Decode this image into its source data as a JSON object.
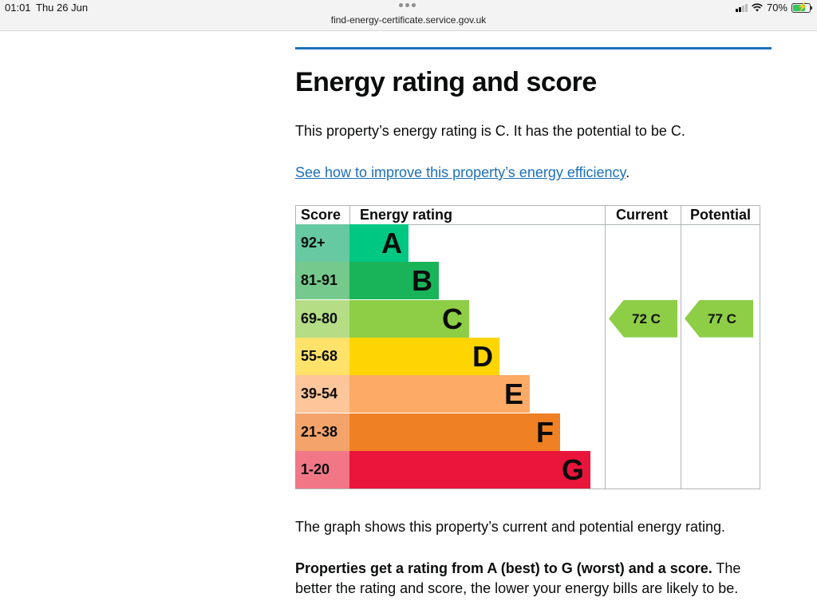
{
  "status_bar": {
    "time": "01:01",
    "date": "Thu 26 Jun",
    "url": "find-energy-certificate.service.gov.uk",
    "battery": "70%",
    "icons": [
      "wifi-icon",
      "signal-icon",
      "battery-charging-icon"
    ]
  },
  "page": {
    "heading": "Energy rating and score",
    "intro": "This property’s energy rating is C. It has the potential to be C.",
    "link_text": "See how to improve this property’s energy efficiency",
    "link_suffix": ".",
    "graph_note": "The graph shows this property’s current and potential energy rating.",
    "scale_note_bold": "Properties get a rating from A (best) to G (worst) and a score.",
    "scale_note_rest": " The better the rating and score, the lower your energy bills are likely to be."
  },
  "chart_data": {
    "type": "table",
    "headers": {
      "score": "Score",
      "rating": "Energy rating",
      "current": "Current",
      "potential": "Potential"
    },
    "bands": [
      {
        "score": "92+",
        "letter": "A",
        "color": "#00c781",
        "score_bg": "#67c9a1"
      },
      {
        "score": "81-91",
        "letter": "B",
        "color": "#19b459",
        "score_bg": "#75c98d"
      },
      {
        "score": "69-80",
        "letter": "C",
        "color": "#8dce46",
        "score_bg": "#b4dd85"
      },
      {
        "score": "55-68",
        "letter": "D",
        "color": "#ffd500",
        "score_bg": "#ffe26a"
      },
      {
        "score": "39-54",
        "letter": "E",
        "color": "#fcaa65",
        "score_bg": "#fdc59a"
      },
      {
        "score": "21-38",
        "letter": "F",
        "color": "#ef8023",
        "score_bg": "#f4a46a"
      },
      {
        "score": "1-20",
        "letter": "G",
        "color": "#e9153b",
        "score_bg": "#f17787"
      }
    ],
    "current": {
      "score": 72,
      "rating": "C",
      "label": "72  C",
      "color": "#8dce46"
    },
    "potential": {
      "score": 77,
      "rating": "C",
      "label": "77  C",
      "color": "#8dce46"
    }
  }
}
